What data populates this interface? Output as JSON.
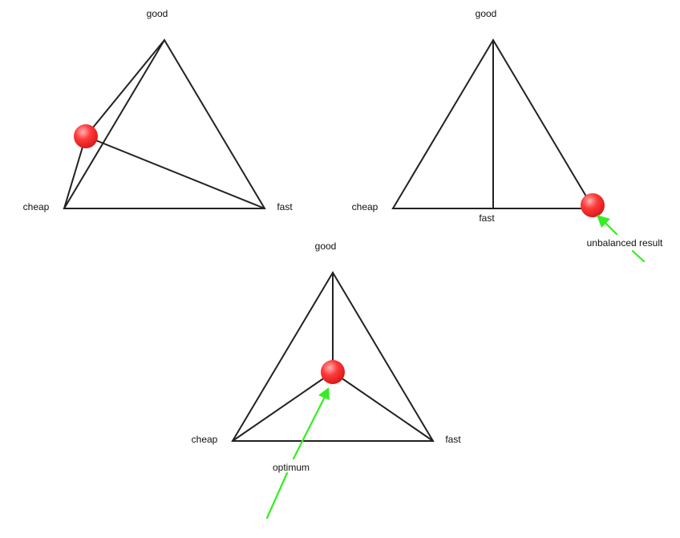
{
  "diagram_1": {
    "vertex_top": "good",
    "vertex_left": "cheap",
    "vertex_right": "fast"
  },
  "diagram_2": {
    "vertex_top": "good",
    "vertex_left": "cheap",
    "base_point": "fast",
    "annotation": "unbalanced result"
  },
  "diagram_3": {
    "vertex_top": "good",
    "vertex_left": "cheap",
    "vertex_right": "fast",
    "annotation": "optimum"
  },
  "colors": {
    "ball": "#ff3333",
    "arrow": "#33ee22",
    "line": "#222222"
  }
}
